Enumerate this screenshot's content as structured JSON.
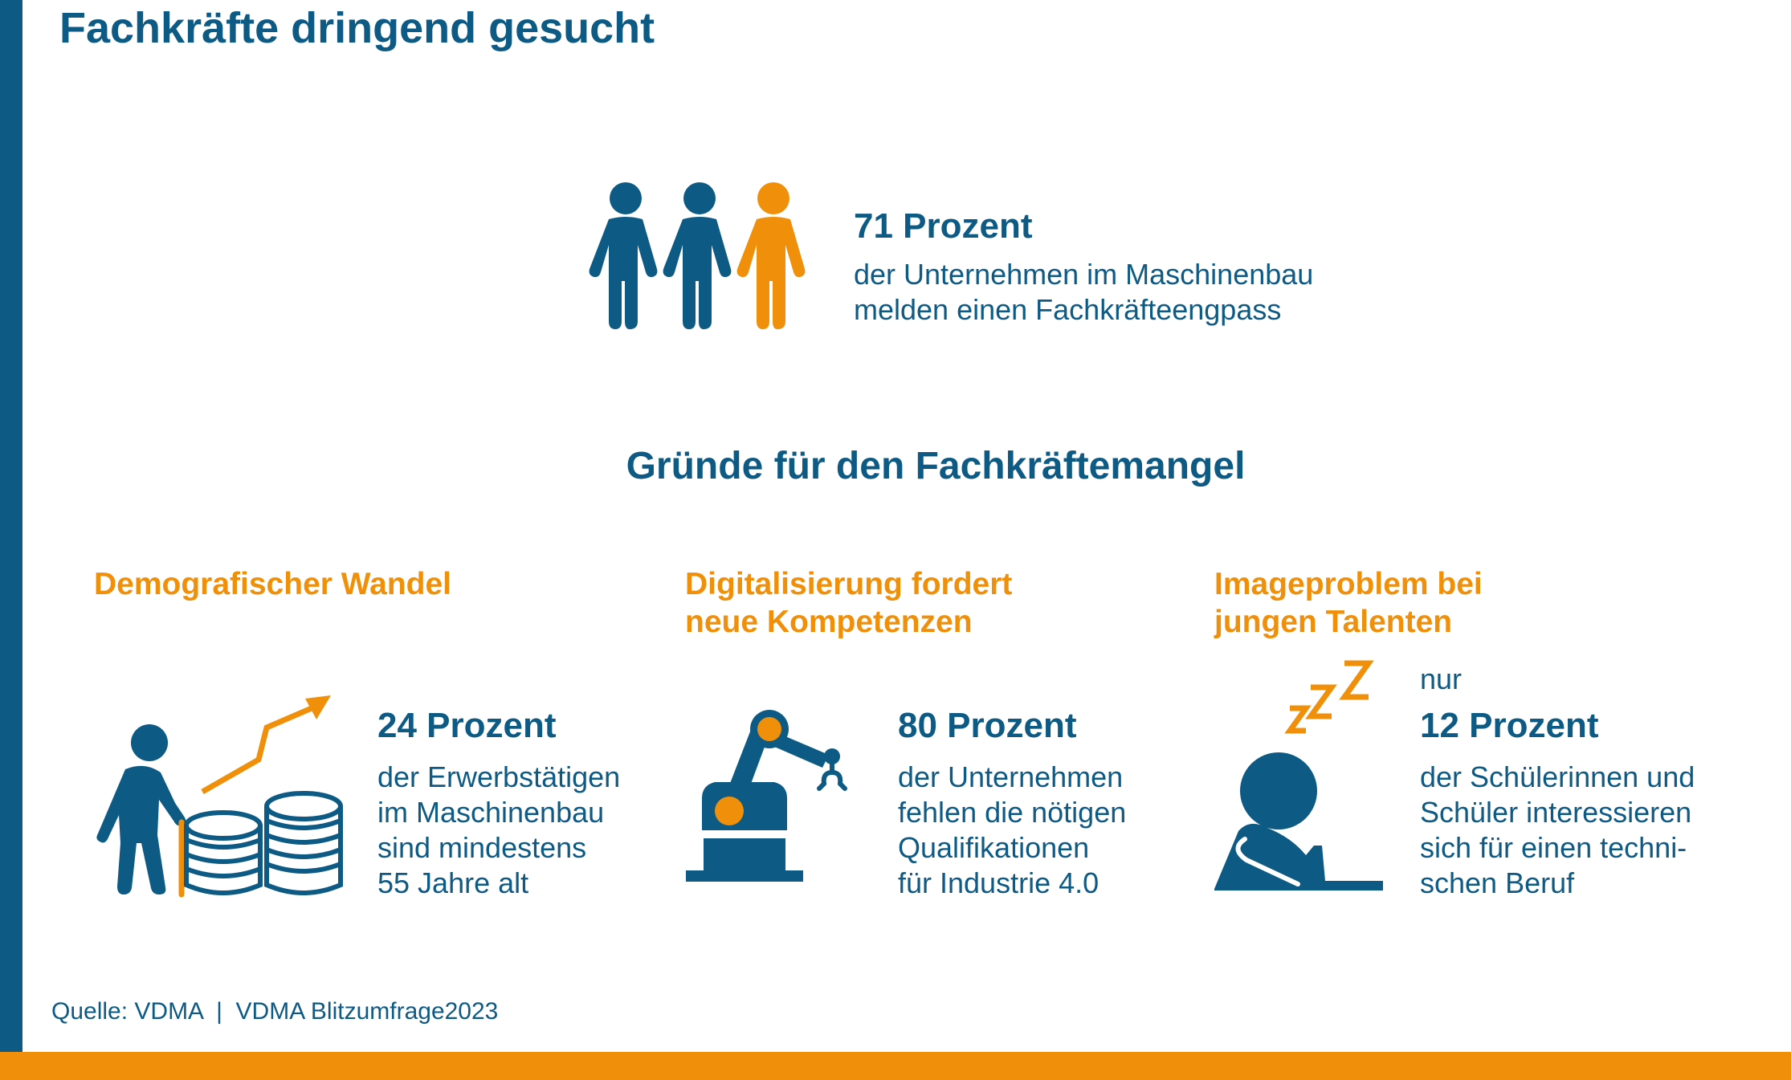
{
  "title": "Fachkräfte dringend gesucht",
  "top_stat": {
    "headline": "71 Prozent",
    "line1": "der Unternehmen im Maschinenbau",
    "line2": "melden einen Fachkräfteengpass"
  },
  "section_heading": "Gründe für den Fachkräftemangel",
  "reasons": [
    {
      "heading_line1": "Demografischer Wandel",
      "headline": "24 Prozent",
      "lines": [
        "der Erwerbstätigen",
        "im Maschinenbau",
        "sind mindestens",
        "55 Jahre alt"
      ]
    },
    {
      "heading_line1": "Digitalisierung fordert",
      "heading_line2": "neue Kompetenzen",
      "headline": "80 Prozent",
      "lines": [
        "der Unternehmen",
        "fehlen die nötigen",
        "Qualifikationen",
        "für Industrie 4.0"
      ]
    },
    {
      "heading_line1": "Imageproblem bei",
      "heading_line2": "jungen Talenten",
      "prefix": "nur",
      "headline": "12 Prozent",
      "lines": [
        "der Schülerinnen und",
        "Schüler interessieren",
        "sich für einen techni-",
        "schen Beruf"
      ]
    }
  ],
  "source": "Quelle: VDMA  |  VDMA Blitzumfrage2023",
  "colors": {
    "blue": "#0d5a84",
    "orange": "#f0900a"
  },
  "icons": [
    "people-icon",
    "senior-with-cane-icon",
    "coins-stack-icon",
    "rising-arrow-icon",
    "robot-arm-icon",
    "sleeping-person-icon",
    "zzz-icon"
  ]
}
